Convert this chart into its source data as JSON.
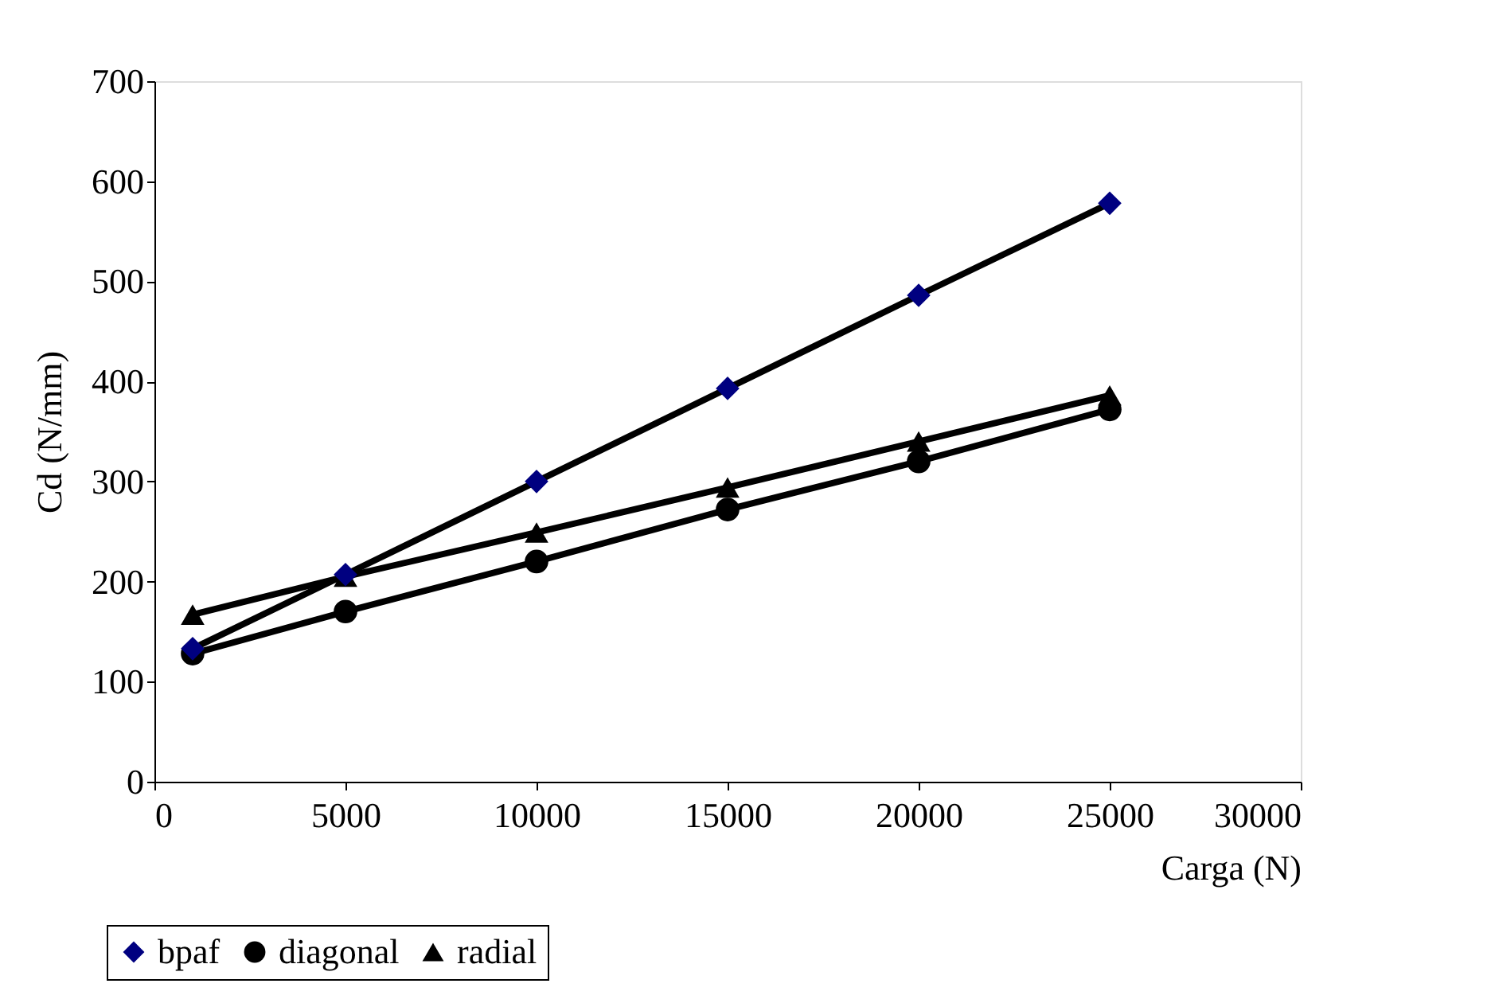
{
  "chart_data": {
    "type": "line",
    "xlabel": "Carga (N)",
    "ylabel": "Cd (N/mm)",
    "x": [
      1000,
      5000,
      10000,
      15000,
      20000,
      25000
    ],
    "series": [
      {
        "name": "bpaf",
        "color": "#000080",
        "marker": "diamond",
        "values": [
          133,
          207,
          300,
          393,
          486,
          578
        ]
      },
      {
        "name": "diagonal",
        "color": "#000000",
        "marker": "circle",
        "values": [
          128,
          170,
          220,
          272,
          320,
          372
        ]
      },
      {
        "name": "radial",
        "color": "#000000",
        "marker": "triangle",
        "values": [
          167,
          205,
          249,
          294,
          340,
          386
        ]
      }
    ],
    "xlim": [
      0,
      30000
    ],
    "xticks": [
      0,
      5000,
      10000,
      15000,
      20000,
      25000,
      30000
    ],
    "ylim": [
      0,
      700
    ],
    "yticks": [
      0,
      100,
      200,
      300,
      400,
      500,
      600,
      700
    ],
    "grid": false,
    "legend": "bottom left",
    "line_style": "solid"
  }
}
